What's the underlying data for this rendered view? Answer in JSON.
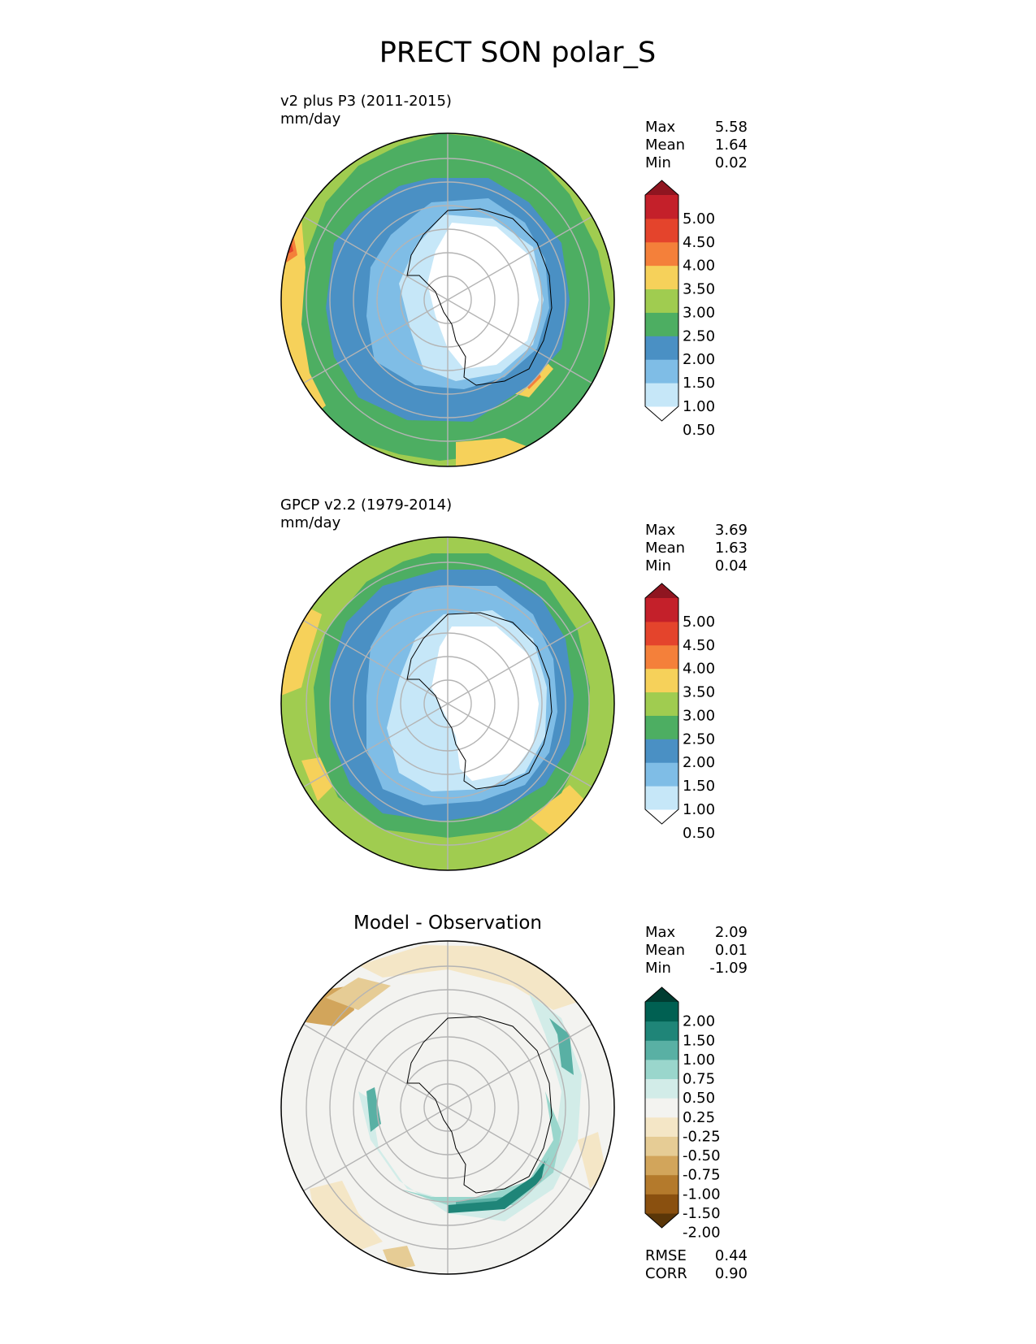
{
  "figure": {
    "title": "PRECT SON polar_S"
  },
  "panels": [
    {
      "id": "model",
      "title_left": "v2 plus P3 (2011-2015)",
      "units": "mm/day",
      "title_center": "",
      "stats": [
        {
          "label": "Max",
          "value": "5.58"
        },
        {
          "label": "Mean",
          "value": "1.64"
        },
        {
          "label": "Min",
          "value": "0.02"
        }
      ],
      "colorbar": {
        "ticks": [
          "5.00",
          "4.50",
          "4.00",
          "3.50",
          "3.00",
          "2.50",
          "2.00",
          "1.50",
          "1.00",
          "0.50"
        ],
        "colors_bottom_to_top": [
          "#ffffff",
          "#c6e7f8",
          "#7fbde6",
          "#4a90c4",
          "#4dae62",
          "#a0cc50",
          "#f6d15a",
          "#f4803a",
          "#e4442c",
          "#c4202a",
          "#8f1520"
        ]
      },
      "extra_stats": []
    },
    {
      "id": "observation",
      "title_left": "GPCP v2.2 (1979-2014)",
      "units": "mm/day",
      "title_center": "",
      "stats": [
        {
          "label": "Max",
          "value": "3.69"
        },
        {
          "label": "Mean",
          "value": "1.63"
        },
        {
          "label": "Min",
          "value": "0.04"
        }
      ],
      "colorbar": {
        "ticks": [
          "5.00",
          "4.50",
          "4.00",
          "3.50",
          "3.00",
          "2.50",
          "2.00",
          "1.50",
          "1.00",
          "0.50"
        ],
        "colors_bottom_to_top": [
          "#ffffff",
          "#c6e7f8",
          "#7fbde6",
          "#4a90c4",
          "#4dae62",
          "#a0cc50",
          "#f6d15a",
          "#f4803a",
          "#e4442c",
          "#c4202a",
          "#8f1520"
        ]
      },
      "extra_stats": []
    },
    {
      "id": "difference",
      "title_left": "",
      "units": "",
      "title_center": "Model - Observation",
      "stats": [
        {
          "label": "Max",
          "value": "2.09"
        },
        {
          "label": "Mean",
          "value": "0.01"
        },
        {
          "label": "Min",
          "value": "-1.09"
        }
      ],
      "colorbar": {
        "ticks": [
          "2.00",
          "1.50",
          "1.00",
          "0.75",
          "0.50",
          "0.25",
          "-0.25",
          "-0.50",
          "-0.75",
          "-1.00",
          "-1.50",
          "-2.00"
        ],
        "colors_bottom_to_top": [
          "#5a3608",
          "#8a500f",
          "#b47a2c",
          "#d2a55b",
          "#e6cc95",
          "#f4e6c6",
          "#f3f3f0",
          "#d2ece8",
          "#9ad6cc",
          "#59b0a4",
          "#1f8578",
          "#006052",
          "#003c31"
        ]
      },
      "extra_stats": [
        {
          "label": "RMSE",
          "value": "0.44"
        },
        {
          "label": "CORR",
          "value": "0.90"
        }
      ]
    }
  ],
  "chart_data": [
    {
      "type": "heatmap",
      "projection": "south-polar-stereographic",
      "title": "v2 plus P3 (2011-2015)",
      "units": "mm/day",
      "levels": [
        0.5,
        1.0,
        1.5,
        2.0,
        2.5,
        3.0,
        3.5,
        4.0,
        4.5,
        5.0
      ],
      "extend": "both",
      "stats": {
        "max": 5.58,
        "mean": 1.64,
        "min": 0.02
      },
      "grid": true
    },
    {
      "type": "heatmap",
      "projection": "south-polar-stereographic",
      "title": "GPCP v2.2 (1979-2014)",
      "units": "mm/day",
      "levels": [
        0.5,
        1.0,
        1.5,
        2.0,
        2.5,
        3.0,
        3.5,
        4.0,
        4.5,
        5.0
      ],
      "extend": "both",
      "stats": {
        "max": 3.69,
        "mean": 1.63,
        "min": 0.04
      },
      "grid": true
    },
    {
      "type": "heatmap",
      "projection": "south-polar-stereographic",
      "title": "Model - Observation",
      "levels": [
        -2.0,
        -1.5,
        -1.0,
        -0.75,
        -0.5,
        -0.25,
        0.25,
        0.5,
        0.75,
        1.0,
        1.5,
        2.0
      ],
      "extend": "both",
      "stats": {
        "max": 2.09,
        "mean": 0.01,
        "min": -1.09,
        "rmse": 0.44,
        "corr": 0.9
      },
      "grid": true
    }
  ]
}
